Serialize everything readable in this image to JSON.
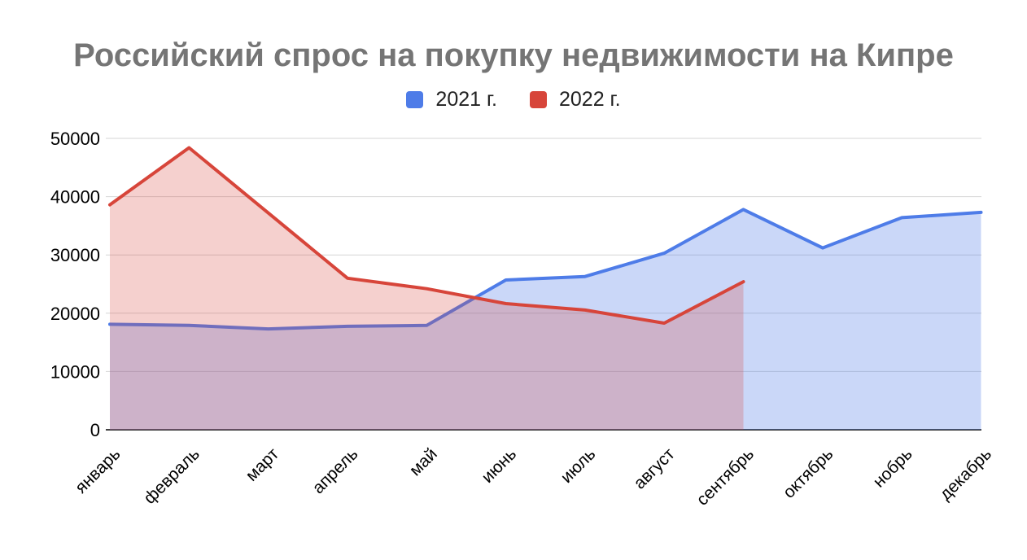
{
  "chart_data": {
    "type": "area",
    "title": "Российский спрос на покупку недвижимости на Кипре",
    "categories": [
      "январь",
      "февраль",
      "март",
      "апрель",
      "май",
      "июнь",
      "июль",
      "август",
      "сентябрь",
      "октябрь",
      "нобрь",
      "декабрь"
    ],
    "series": [
      {
        "name": "2021 г.",
        "color": "#4e7ce8",
        "fill_opacity": 0.3,
        "values": [
          18100,
          17900,
          17300,
          17750,
          17900,
          25700,
          26300,
          30300,
          37800,
          31200,
          36400,
          37300
        ]
      },
      {
        "name": "2022 г.",
        "color": "#d7453a",
        "fill_opacity": 0.25,
        "values": [
          38600,
          48400,
          37200,
          26000,
          24200,
          21650,
          20550,
          18300,
          25400
        ]
      }
    ],
    "xlabel": "",
    "ylabel": "",
    "ylim": [
      0,
      50000
    ],
    "yticks": [
      0,
      10000,
      20000,
      30000,
      40000,
      50000
    ],
    "grid": true,
    "legend_position": "top",
    "background": "#ffffff",
    "title_color": "#757575",
    "gridline_color": "#d6d6d6",
    "axis_line_color": "#424242",
    "tick_label_color": "#000000",
    "legend_text_color": "#212121"
  }
}
